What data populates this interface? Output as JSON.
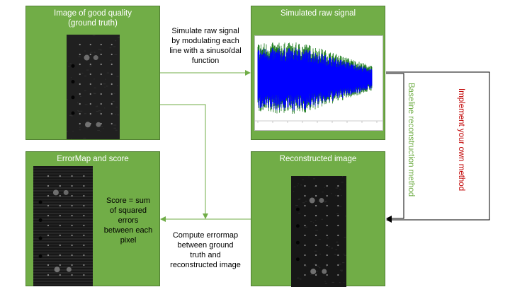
{
  "panels": {
    "ground_truth": {
      "title_lines": [
        "Image of good quality",
        "(ground truth)"
      ]
    },
    "raw_signal": {
      "title": "Simulated raw signal"
    },
    "error_map": {
      "title": "ErrorMap and score"
    },
    "reconstructed": {
      "title": "Reconstructed image"
    }
  },
  "annotations": {
    "simulate": [
      "Simulate raw signal",
      "by modulating each",
      "line with a sinusoïdal",
      "function"
    ],
    "score": [
      "Score = sum",
      "of squared",
      "errors",
      "between each",
      "pixel"
    ],
    "compute": [
      "Compute errormap",
      "between ground",
      "truth and",
      "reconstructed image"
    ],
    "baseline": "Baseline reconstruction method",
    "implement": "Implement your own method"
  },
  "colors": {
    "panel_fill": "#71ad47",
    "panel_border": "#507e32",
    "arrow_green": "#70ad47",
    "arrow_black": "#000000",
    "baseline_text": "#70ad47",
    "implement_text": "#c00000",
    "signal_blue": "#0000ff",
    "signal_green": "#1a7a1a"
  }
}
